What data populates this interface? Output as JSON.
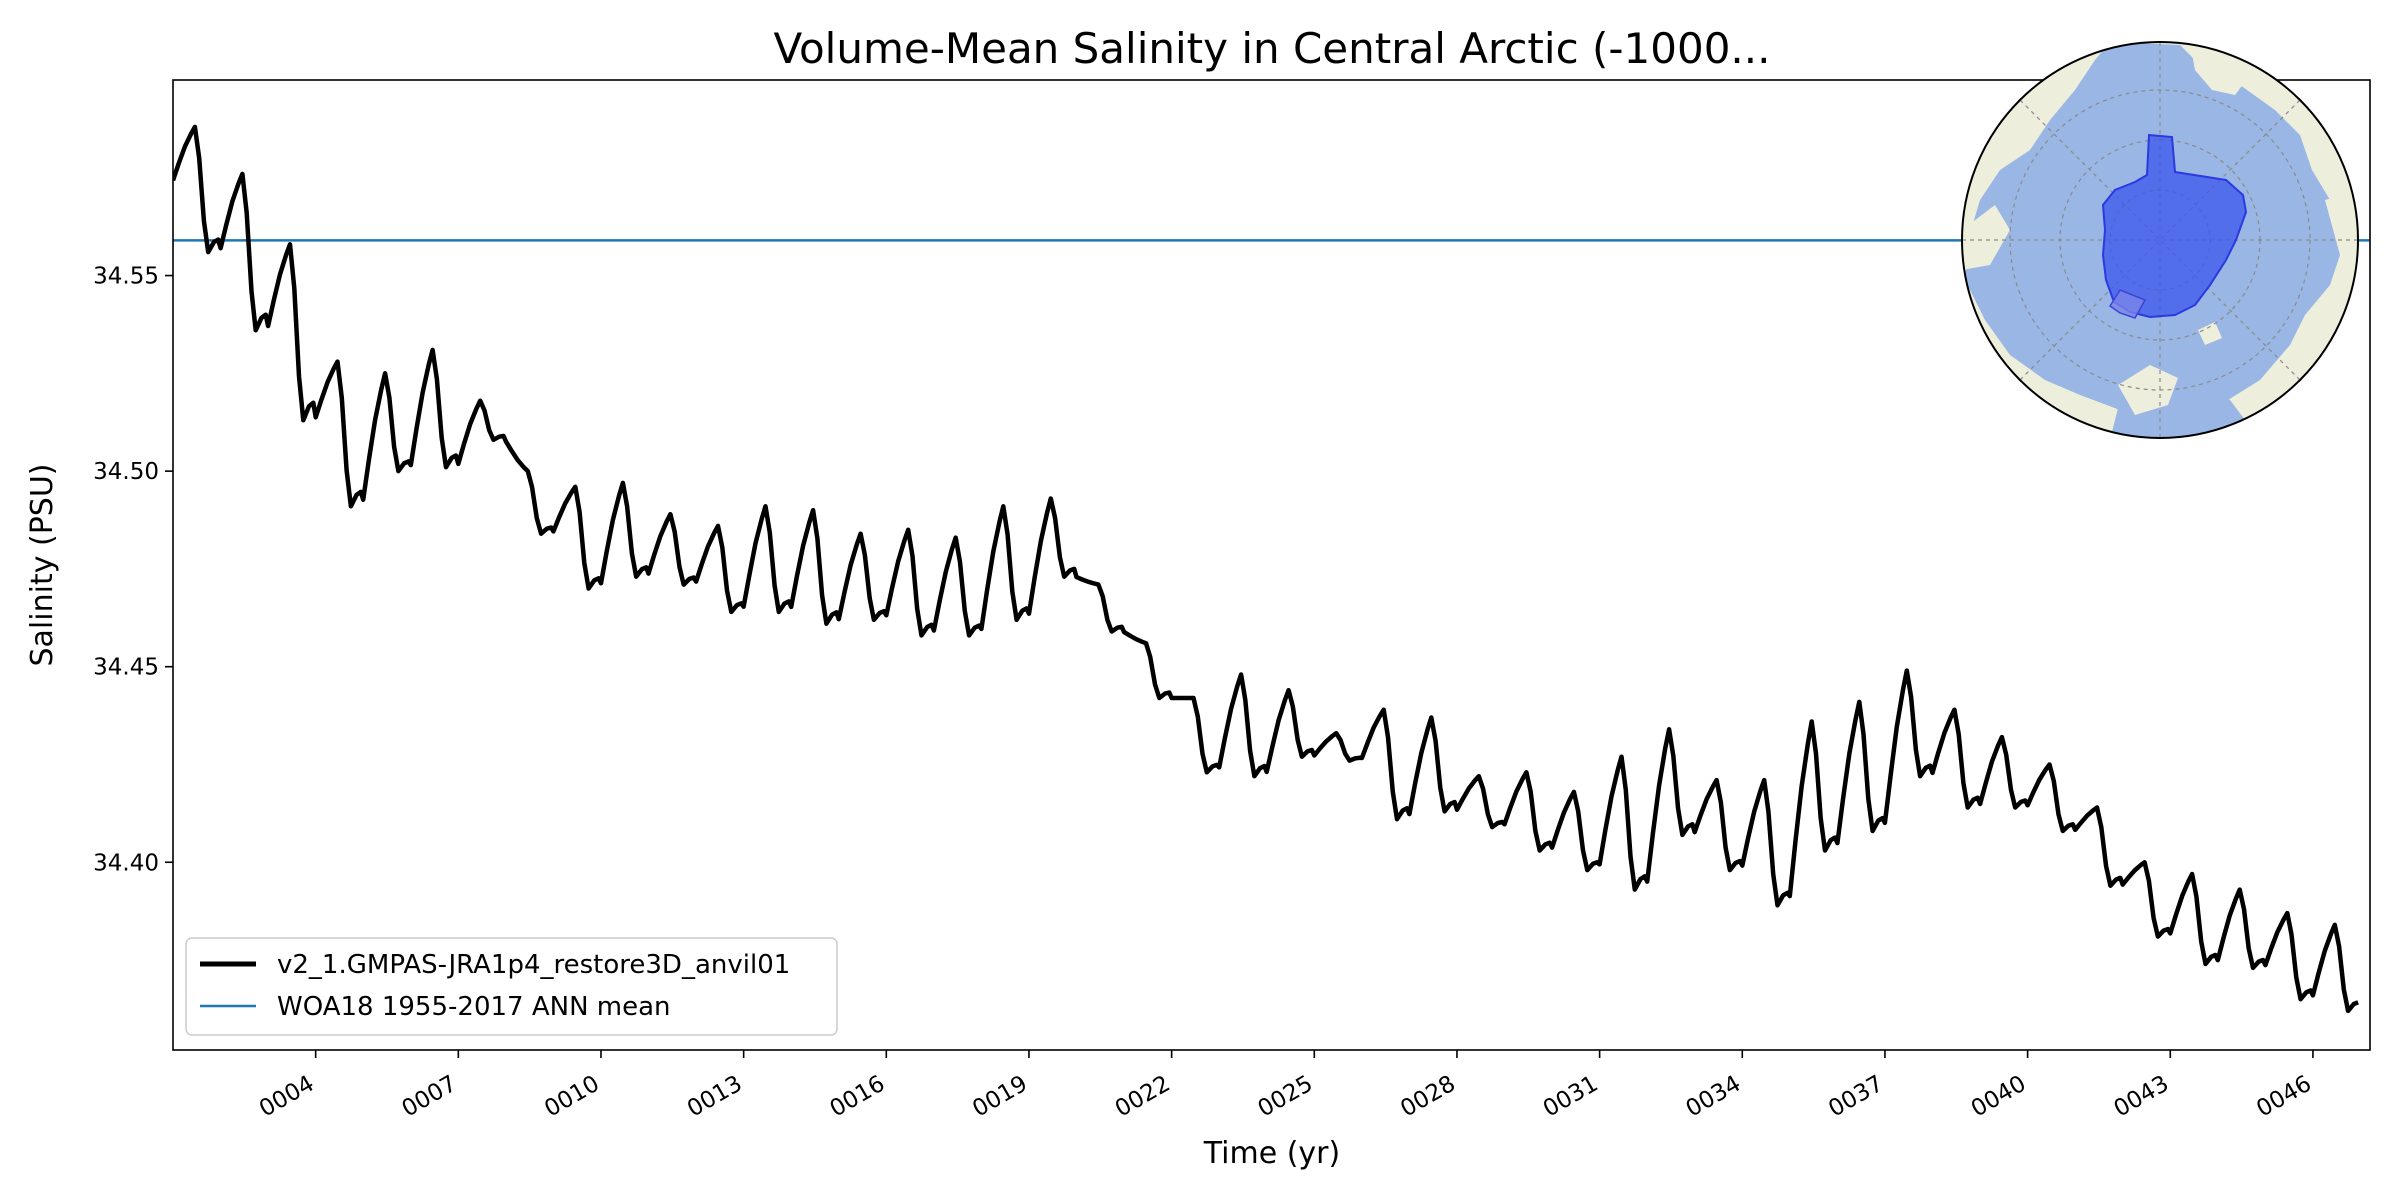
{
  "chart_data": {
    "type": "line",
    "title": "Volume-Mean Salinity in Central Arctic (-1000...",
    "xlabel": "Time (yr)",
    "ylabel": "Salinity (PSU)",
    "xlim": [
      1.0,
      47.2
    ],
    "ylim": [
      34.352,
      34.6
    ],
    "yticks": [
      34.4,
      34.45,
      34.5,
      34.55
    ],
    "ytick_labels": [
      "34.40",
      "34.45",
      "34.50",
      "34.55"
    ],
    "xticks": [
      4,
      7,
      10,
      13,
      16,
      19,
      22,
      25,
      28,
      31,
      34,
      37,
      40,
      43,
      46
    ],
    "xtick_labels": [
      "0004",
      "0007",
      "0010",
      "0013",
      "0016",
      "0019",
      "0022",
      "0025",
      "0028",
      "0031",
      "0034",
      "0037",
      "0040",
      "0043",
      "0046"
    ],
    "grid": false,
    "legend_position": "lower-left",
    "series": [
      {
        "name": "v2_1.GMPAS-JRA1p4_restore3D_anvil01",
        "color": "#000000",
        "x_unit": "model year",
        "year_start": 1,
        "year_peaks": [
          34.588,
          34.576,
          34.558,
          34.528,
          34.525,
          34.531,
          34.518,
          34.5,
          34.496,
          34.497,
          34.489,
          34.486,
          34.491,
          34.49,
          34.484,
          34.485,
          34.483,
          34.491,
          34.493,
          34.471,
          34.456,
          34.442,
          34.448,
          34.444,
          34.433,
          34.439,
          34.437,
          34.422,
          34.423,
          34.418,
          34.427,
          34.434,
          34.421,
          34.421,
          34.436,
          34.441,
          34.449,
          34.439,
          34.432,
          34.425,
          34.414,
          34.4,
          34.397,
          34.393,
          34.387,
          34.384
        ],
        "year_troughs": [
          34.556,
          34.536,
          34.513,
          34.491,
          34.5,
          34.501,
          34.508,
          34.484,
          34.47,
          34.473,
          34.471,
          34.464,
          34.464,
          34.461,
          34.462,
          34.458,
          34.458,
          34.462,
          34.473,
          34.459,
          34.442,
          34.423,
          34.422,
          34.427,
          34.426,
          34.411,
          34.413,
          34.409,
          34.403,
          34.398,
          34.393,
          34.407,
          34.398,
          34.389,
          34.403,
          34.408,
          34.422,
          34.414,
          34.414,
          34.408,
          34.394,
          34.381,
          34.374,
          34.373,
          34.365,
          34.362
        ]
      },
      {
        "name": "WOA18 1955-2017 ANN mean",
        "color": "#1f77b4",
        "value": 34.559
      }
    ]
  },
  "inset_map": {
    "projection": "north-polar-stereographic",
    "ocean_color": "#9ab6e4",
    "land_color": "#eeeedc",
    "region_color": "#3b55ee",
    "region_label": "Central Arctic"
  }
}
